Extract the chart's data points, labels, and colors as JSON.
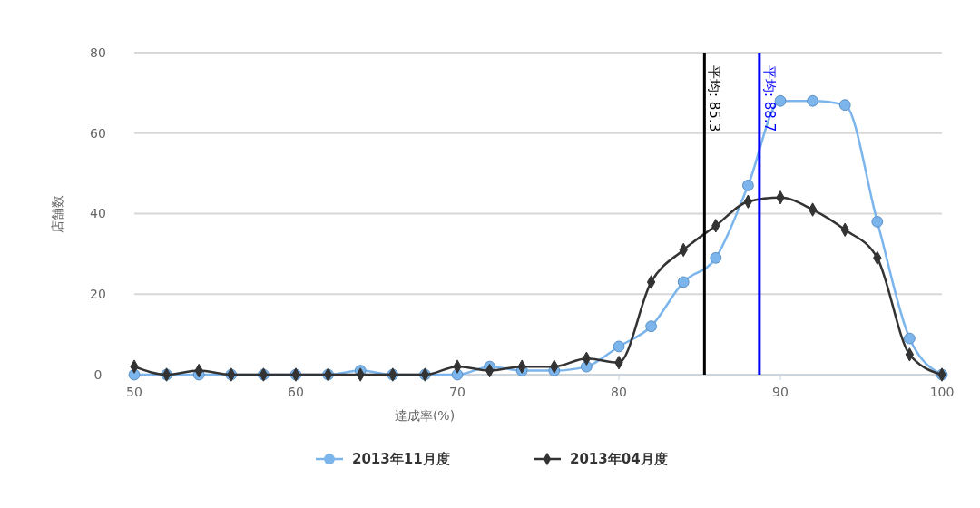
{
  "chart_data": {
    "type": "line",
    "xlabel": "達成率(%)",
    "ylabel": "店舗数",
    "x": [
      50,
      52,
      54,
      56,
      58,
      60,
      62,
      64,
      66,
      68,
      70,
      72,
      74,
      76,
      78,
      80,
      82,
      84,
      86,
      88,
      90,
      92,
      94,
      96,
      98,
      100
    ],
    "series": [
      {
        "name": "2013年11月度",
        "color": "#7cb5ec",
        "marker": "circle",
        "values": [
          0,
          0,
          0,
          0,
          0,
          0,
          0,
          1,
          0,
          0,
          0,
          2,
          1,
          1,
          2,
          7,
          12,
          23,
          29,
          47,
          68,
          68,
          67,
          38,
          9,
          0
        ]
      },
      {
        "name": "2013年04月度",
        "color": "#333333",
        "marker": "diamond",
        "values": [
          2,
          0,
          1,
          0,
          0,
          0,
          0,
          0,
          0,
          0,
          2,
          1,
          2,
          2,
          4,
          3,
          23,
          31,
          37,
          43,
          44,
          41,
          36,
          29,
          5,
          0
        ]
      }
    ],
    "xlim": [
      50,
      100
    ],
    "xticks": [
      50,
      60,
      70,
      80,
      90,
      100
    ],
    "ylim": [
      0,
      80
    ],
    "yticks": [
      0,
      20,
      40,
      60,
      80
    ],
    "grid": "y",
    "legend": "bottom",
    "ref_lines": [
      {
        "axis": "x",
        "value": 85.3,
        "label": "平均: 85.3",
        "color": "#000000"
      },
      {
        "axis": "x",
        "value": 88.7,
        "label": "平均: 88.7",
        "color": "#0000ff"
      }
    ]
  }
}
